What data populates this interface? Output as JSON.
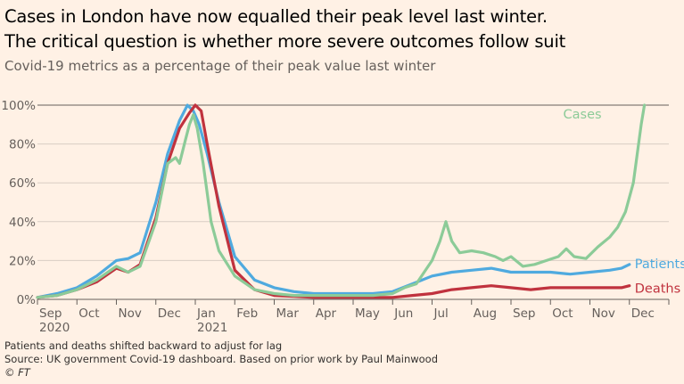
{
  "title_lines": [
    "Cases in London have now equalled their peak level last winter.",
    "The critical question is whether more severe outcomes follow suit"
  ],
  "subtitle": "Covid-19 metrics as a percentage of their peak value last winter",
  "notes": {
    "lag": "Patients and deaths shifted backward to adjust for lag",
    "source": "Source: UK government Covid-19 dashboard. Based on prior work by Paul Mainwood",
    "credit": "© FT"
  },
  "colors": {
    "cases": "#8ccb98",
    "patients": "#4faadf",
    "deaths": "#c0323e",
    "background": "#fff1e5",
    "grid": "#d9cec4",
    "reference": "#66605c"
  },
  "chart_data": {
    "type": "line",
    "x_unit": "months since Sep 2020",
    "xlim": [
      0,
      16
    ],
    "ylim": [
      0,
      100
    ],
    "y_ticks": [
      0,
      20,
      40,
      60,
      80,
      100
    ],
    "y_tick_labels": [
      "0%",
      "20%",
      "40%",
      "60%",
      "80%",
      "100%"
    ],
    "x_tick_labels": [
      "Sep",
      "Oct",
      "Nov",
      "Dec",
      "Jan",
      "Feb",
      "Mar",
      "Apr",
      "May",
      "Jun",
      "Jul",
      "Aug",
      "Sep",
      "Oct",
      "Nov",
      "Dec"
    ],
    "year_labels": [
      {
        "month_index": 0,
        "label": "2020"
      },
      {
        "month_index": 4,
        "label": "2021"
      }
    ],
    "grid": true,
    "series": [
      {
        "key": "patients",
        "name": "Patients",
        "x": [
          0,
          0.5,
          1.0,
          1.5,
          2.0,
          2.3,
          2.6,
          3.0,
          3.3,
          3.6,
          3.8,
          3.95,
          4.1,
          4.3,
          4.6,
          5.0,
          5.5,
          6.0,
          6.5,
          7.0,
          7.5,
          8.0,
          8.5,
          9.0,
          9.5,
          10.0,
          10.5,
          11.0,
          11.5,
          12.0,
          12.5,
          13.0,
          13.5,
          14.0,
          14.5,
          14.8,
          15.0
        ],
        "y": [
          1,
          3,
          6,
          12,
          20,
          21,
          24,
          50,
          75,
          92,
          100,
          97,
          90,
          75,
          50,
          22,
          10,
          6,
          4,
          3,
          3,
          3,
          3,
          4,
          8,
          12,
          14,
          15,
          16,
          14,
          14,
          14,
          13,
          14,
          15,
          16,
          18
        ]
      },
      {
        "key": "deaths",
        "name": "Deaths",
        "x": [
          0,
          0.5,
          1.0,
          1.5,
          2.0,
          2.3,
          2.6,
          3.0,
          3.3,
          3.6,
          3.85,
          4.0,
          4.15,
          4.3,
          4.6,
          5.0,
          5.5,
          6.0,
          6.5,
          7.0,
          7.5,
          8.0,
          8.5,
          9.0,
          9.5,
          10.0,
          10.5,
          11.0,
          11.5,
          12.0,
          12.5,
          13.0,
          13.5,
          14.0,
          14.5,
          14.8,
          15.0
        ],
        "y": [
          1,
          2,
          5,
          9,
          16,
          14,
          18,
          42,
          70,
          88,
          96,
          100,
          97,
          80,
          48,
          15,
          5,
          2,
          1.5,
          1,
          1,
          1,
          1,
          1,
          2,
          3,
          5,
          6,
          7,
          6,
          5,
          6,
          6,
          6,
          6,
          6,
          7
        ]
      },
      {
        "key": "cases",
        "name": "Cases",
        "x": [
          0,
          0.5,
          1.0,
          1.5,
          2.0,
          2.3,
          2.6,
          3.0,
          3.3,
          3.5,
          3.6,
          3.75,
          3.85,
          3.95,
          4.05,
          4.2,
          4.4,
          4.6,
          5.0,
          5.5,
          6.0,
          6.5,
          7.0,
          7.5,
          8.0,
          8.5,
          9.0,
          9.3,
          9.6,
          10.0,
          10.2,
          10.35,
          10.5,
          10.7,
          11.0,
          11.3,
          11.6,
          11.8,
          12.0,
          12.3,
          12.6,
          12.9,
          13.2,
          13.4,
          13.6,
          13.9,
          14.2,
          14.5,
          14.7,
          14.9,
          15.1,
          15.2,
          15.3,
          15.38
        ],
        "y": [
          1,
          2,
          5,
          10,
          17,
          14,
          17,
          40,
          70,
          73,
          70,
          82,
          90,
          95,
          88,
          70,
          40,
          25,
          12,
          5,
          3,
          2,
          2,
          2,
          2,
          2,
          3,
          6,
          8,
          20,
          30,
          40,
          30,
          24,
          25,
          24,
          22,
          20,
          22,
          17,
          18,
          20,
          22,
          26,
          22,
          21,
          27,
          32,
          37,
          45,
          60,
          75,
          90,
          100
        ]
      }
    ]
  }
}
